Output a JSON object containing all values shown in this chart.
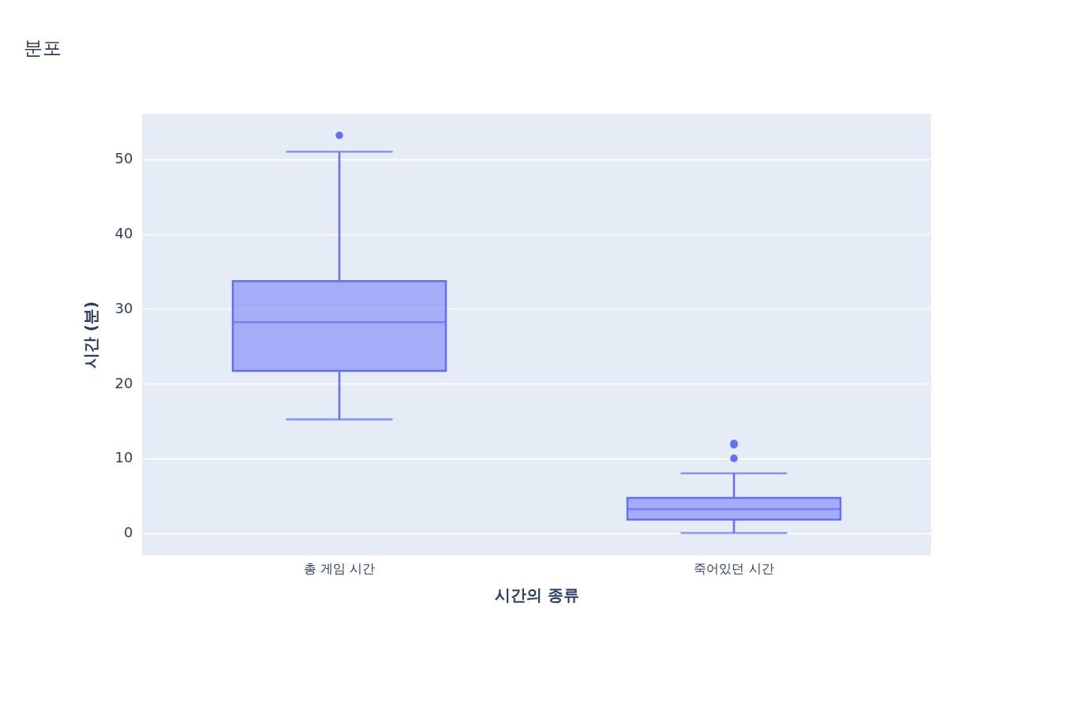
{
  "chart_data": {
    "type": "box",
    "title": "분포",
    "xlabel": "시간의 종류",
    "ylabel": "시간 (분)",
    "categories": [
      "총 게임 시간",
      "죽어있던 시간"
    ],
    "boxes": [
      {
        "low": 15.2,
        "q1": 21.7,
        "median": 28.2,
        "q3": 33.7,
        "high": 51,
        "outliers": [
          53.2
        ]
      },
      {
        "low": 0,
        "q1": 1.8,
        "median": 3.2,
        "q3": 4.7,
        "high": 8,
        "outliers": [
          10,
          11.8,
          12
        ]
      }
    ],
    "color": "#636efa",
    "ylim": [
      -3,
      56.1
    ],
    "yticks": [
      0,
      10,
      20,
      30,
      40,
      50
    ],
    "grid": "y"
  }
}
